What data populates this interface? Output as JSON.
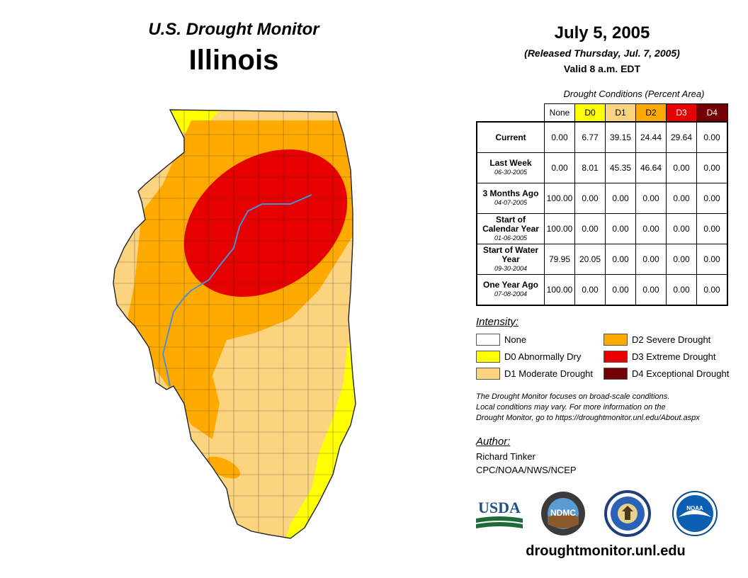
{
  "header": {
    "map_title": "U.S. Drought Monitor",
    "state": "Illinois",
    "date": "July 5, 2005",
    "released": "(Released Thursday, Jul. 7, 2005)",
    "valid": "Valid 8 a.m. EDT"
  },
  "table": {
    "caption": "Drought Conditions (Percent Area)",
    "columns": [
      {
        "label": "None",
        "color": "#ffffff",
        "text_color": "#000000"
      },
      {
        "label": "D0",
        "color": "#ffff00",
        "text_color": "#000000"
      },
      {
        "label": "D1",
        "color": "#fcd37f",
        "text_color": "#000000"
      },
      {
        "label": "D2",
        "color": "#ffaa00",
        "text_color": "#000000"
      },
      {
        "label": "D3",
        "color": "#e60000",
        "text_color": "#ffffff"
      },
      {
        "label": "D4",
        "color": "#730000",
        "text_color": "#ffffff"
      }
    ],
    "rows": [
      {
        "label": "Current",
        "date": "",
        "values": [
          "0.00",
          "6.77",
          "39.15",
          "24.44",
          "29.64",
          "0.00"
        ]
      },
      {
        "label": "Last Week",
        "date": "06-30-2005",
        "values": [
          "0.00",
          "8.01",
          "45.35",
          "46.64",
          "0.00",
          "0.00"
        ]
      },
      {
        "label": "3 Months Ago",
        "date": "04-07-2005",
        "values": [
          "100.00",
          "0.00",
          "0.00",
          "0.00",
          "0.00",
          "0.00"
        ]
      },
      {
        "label": "Start of Calendar Year",
        "date": "01-06-2005",
        "values": [
          "100.00",
          "0.00",
          "0.00",
          "0.00",
          "0.00",
          "0.00"
        ]
      },
      {
        "label": "Start of Water Year",
        "date": "09-30-2004",
        "values": [
          "79.95",
          "20.05",
          "0.00",
          "0.00",
          "0.00",
          "0.00"
        ]
      },
      {
        "label": "One Year Ago",
        "date": "07-08-2004",
        "values": [
          "100.00",
          "0.00",
          "0.00",
          "0.00",
          "0.00",
          "0.00"
        ]
      }
    ]
  },
  "legend": {
    "title": "Intensity:",
    "items": [
      {
        "label": "None",
        "color": "#ffffff"
      },
      {
        "label": "D0 Abnormally Dry",
        "color": "#ffff00"
      },
      {
        "label": "D1 Moderate Drought",
        "color": "#fcd37f"
      },
      {
        "label": "D2 Severe Drought",
        "color": "#ffaa00"
      },
      {
        "label": "D3 Extreme Drought",
        "color": "#e60000"
      },
      {
        "label": "D4 Exceptional Drought",
        "color": "#730000"
      }
    ]
  },
  "note": {
    "line1": "The Drought Monitor focuses on broad-scale conditions.",
    "line2": "Local conditions may vary. For more information on the",
    "line3": "Drought Monitor, go to https://droughtmonitor.unl.edu/About.aspx"
  },
  "author": {
    "title": "Author:",
    "name": "Richard Tinker",
    "org": "CPC/NOAA/NWS/NCEP"
  },
  "logos": {
    "usda": "USDA",
    "ndmc": "NDMC",
    "noaa": "NOAA"
  },
  "website": "droughtmonitor.unl.edu",
  "map": {
    "region": "Illinois",
    "river_color": "#4a90d9",
    "categories_shown": [
      "D0",
      "D1",
      "D2",
      "D3"
    ]
  }
}
